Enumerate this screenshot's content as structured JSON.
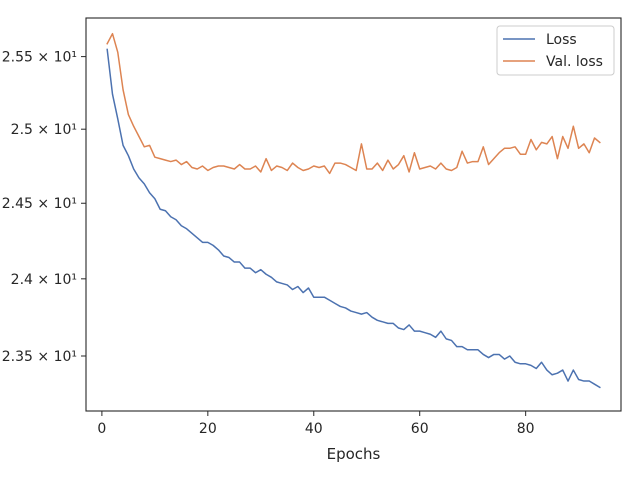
{
  "chart_data": {
    "type": "line",
    "title": "",
    "xlabel": "Epochs",
    "ylabel": "",
    "y_scale": "log",
    "xlim": [
      -3,
      98
    ],
    "ylim": [
      23.15,
      25.77
    ],
    "grid": false,
    "legend_position": "top-right",
    "x_ticks": [
      0,
      20,
      40,
      60,
      80
    ],
    "x_tick_labels": [
      "0",
      "20",
      "40",
      "60",
      "80"
    ],
    "y_ticks": [
      23.5,
      24.0,
      24.5,
      25.0,
      25.5
    ],
    "y_tick_labels": [
      "2.35 × 10¹",
      "2.4 × 10¹",
      "2.45 × 10¹",
      "2.5 × 10¹",
      "2.55 × 10¹"
    ],
    "series": [
      {
        "name": "Loss",
        "color": "#4c72b0",
        "x": [
          1,
          2,
          3,
          4,
          5,
          6,
          7,
          8,
          9,
          10,
          11,
          12,
          13,
          14,
          15,
          16,
          17,
          18,
          19,
          20,
          21,
          22,
          23,
          24,
          25,
          26,
          27,
          28,
          29,
          30,
          31,
          32,
          33,
          34,
          35,
          36,
          37,
          38,
          39,
          40,
          41,
          42,
          43,
          44,
          45,
          46,
          47,
          48,
          49,
          50,
          51,
          52,
          53,
          54,
          55,
          56,
          57,
          58,
          59,
          60,
          61,
          62,
          63,
          64,
          65,
          66,
          67,
          68,
          69,
          70,
          71,
          72,
          73,
          74,
          75,
          76,
          77,
          78,
          79,
          80,
          81,
          82,
          83,
          84,
          85,
          86,
          87,
          88,
          89,
          90,
          91,
          92,
          93,
          94
        ],
        "values": [
          25.55,
          25.24,
          25.07,
          24.89,
          24.82,
          24.73,
          24.67,
          24.63,
          24.57,
          24.53,
          24.46,
          24.45,
          24.41,
          24.39,
          24.35,
          24.33,
          24.3,
          24.27,
          24.24,
          24.24,
          24.22,
          24.19,
          24.15,
          24.14,
          24.11,
          24.11,
          24.07,
          24.07,
          24.04,
          24.06,
          24.03,
          24.01,
          23.98,
          23.97,
          23.96,
          23.93,
          23.95,
          23.91,
          23.94,
          23.88,
          23.88,
          23.88,
          23.86,
          23.84,
          23.82,
          23.81,
          23.79,
          23.78,
          23.77,
          23.78,
          23.75,
          23.73,
          23.72,
          23.71,
          23.71,
          23.68,
          23.67,
          23.7,
          23.66,
          23.66,
          23.65,
          23.64,
          23.62,
          23.66,
          23.61,
          23.6,
          23.56,
          23.56,
          23.54,
          23.54,
          23.54,
          23.51,
          23.49,
          23.51,
          23.51,
          23.48,
          23.5,
          23.46,
          23.45,
          23.45,
          23.44,
          23.42,
          23.46,
          23.41,
          23.38,
          23.39,
          23.41,
          23.34,
          23.41,
          23.35,
          23.34,
          23.34,
          23.32,
          23.3
        ]
      },
      {
        "name": "Val. loss",
        "color": "#dd8452",
        "x": [
          1,
          2,
          3,
          4,
          5,
          6,
          7,
          8,
          9,
          10,
          11,
          12,
          13,
          14,
          15,
          16,
          17,
          18,
          19,
          20,
          21,
          22,
          23,
          24,
          25,
          26,
          27,
          28,
          29,
          30,
          31,
          32,
          33,
          34,
          35,
          36,
          37,
          38,
          39,
          40,
          41,
          42,
          43,
          44,
          45,
          46,
          47,
          48,
          49,
          50,
          51,
          52,
          53,
          54,
          55,
          56,
          57,
          58,
          59,
          60,
          61,
          62,
          63,
          64,
          65,
          66,
          67,
          68,
          69,
          70,
          71,
          72,
          73,
          74,
          75,
          76,
          77,
          78,
          79,
          80,
          81,
          82,
          83,
          84,
          85,
          86,
          87,
          88,
          89,
          90,
          91,
          92,
          93,
          94
        ],
        "values": [
          25.59,
          25.66,
          25.53,
          25.27,
          25.1,
          25.02,
          24.95,
          24.88,
          24.89,
          24.81,
          24.8,
          24.79,
          24.78,
          24.79,
          24.76,
          24.78,
          24.74,
          24.73,
          24.75,
          24.72,
          24.74,
          24.75,
          24.75,
          24.74,
          24.73,
          24.76,
          24.73,
          24.73,
          24.75,
          24.71,
          24.8,
          24.72,
          24.75,
          24.74,
          24.72,
          24.77,
          24.74,
          24.72,
          24.73,
          24.75,
          24.74,
          24.75,
          24.7,
          24.77,
          24.77,
          24.76,
          24.74,
          24.72,
          24.9,
          24.73,
          24.73,
          24.77,
          24.72,
          24.79,
          24.73,
          24.76,
          24.82,
          24.71,
          24.84,
          24.73,
          24.74,
          24.75,
          24.73,
          24.77,
          24.73,
          24.72,
          24.74,
          24.85,
          24.77,
          24.78,
          24.78,
          24.88,
          24.76,
          24.8,
          24.84,
          24.87,
          24.87,
          24.88,
          24.83,
          24.83,
          24.93,
          24.86,
          24.91,
          24.9,
          24.95,
          24.8,
          24.95,
          24.87,
          25.02,
          24.87,
          24.9,
          24.84,
          24.94,
          24.91
        ]
      }
    ]
  }
}
